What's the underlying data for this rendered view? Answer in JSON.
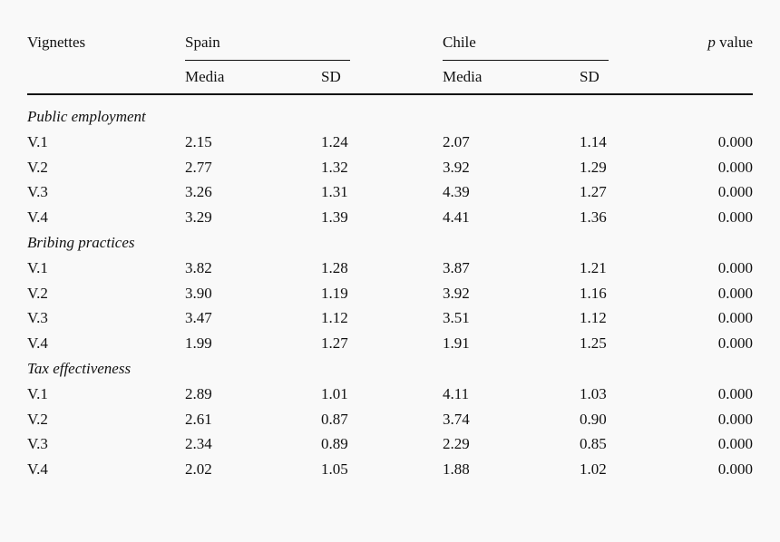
{
  "header": {
    "vignettes": "Vignettes",
    "spain": "Spain",
    "chile": "Chile",
    "pvalue_p": "p",
    "pvalue_word": "value",
    "spain_media": "Media",
    "spain_sd": "SD",
    "chile_media": "Media",
    "chile_sd": "SD"
  },
  "sections": [
    {
      "title": "Public employment",
      "rows": [
        {
          "label": "V.1",
          "spain_media": "2.15",
          "spain_sd": "1.24",
          "chile_media": "2.07",
          "chile_sd": "1.14",
          "p": "0.000"
        },
        {
          "label": "V.2",
          "spain_media": "2.77",
          "spain_sd": "1.32",
          "chile_media": "3.92",
          "chile_sd": "1.29",
          "p": "0.000"
        },
        {
          "label": "V.3",
          "spain_media": "3.26",
          "spain_sd": "1.31",
          "chile_media": "4.39",
          "chile_sd": "1.27",
          "p": "0.000"
        },
        {
          "label": "V.4",
          "spain_media": "3.29",
          "spain_sd": "1.39",
          "chile_media": "4.41",
          "chile_sd": "1.36",
          "p": "0.000"
        }
      ]
    },
    {
      "title": "Bribing practices",
      "rows": [
        {
          "label": "V.1",
          "spain_media": "3.82",
          "spain_sd": "1.28",
          "chile_media": "3.87",
          "chile_sd": "1.21",
          "p": "0.000"
        },
        {
          "label": "V.2",
          "spain_media": "3.90",
          "spain_sd": "1.19",
          "chile_media": "3.92",
          "chile_sd": "1.16",
          "p": "0.000"
        },
        {
          "label": "V.3",
          "spain_media": "3.47",
          "spain_sd": "1.12",
          "chile_media": "3.51",
          "chile_sd": "1.12",
          "p": "0.000"
        },
        {
          "label": "V.4",
          "spain_media": "1.99",
          "spain_sd": "1.27",
          "chile_media": "1.91",
          "chile_sd": "1.25",
          "p": "0.000"
        }
      ]
    },
    {
      "title": "Tax effectiveness",
      "rows": [
        {
          "label": "V.1",
          "spain_media": "2.89",
          "spain_sd": "1.01",
          "chile_media": "4.11",
          "chile_sd": "1.03",
          "p": "0.000"
        },
        {
          "label": "V.2",
          "spain_media": "2.61",
          "spain_sd": "0.87",
          "chile_media": "3.74",
          "chile_sd": "0.90",
          "p": "0.000"
        },
        {
          "label": "V.3",
          "spain_media": "2.34",
          "spain_sd": "0.89",
          "chile_media": "2.29",
          "chile_sd": "0.85",
          "p": "0.000"
        },
        {
          "label": "V.4",
          "spain_media": "2.02",
          "spain_sd": "1.05",
          "chile_media": "1.88",
          "chile_sd": "1.02",
          "p": "0.000"
        }
      ]
    }
  ]
}
